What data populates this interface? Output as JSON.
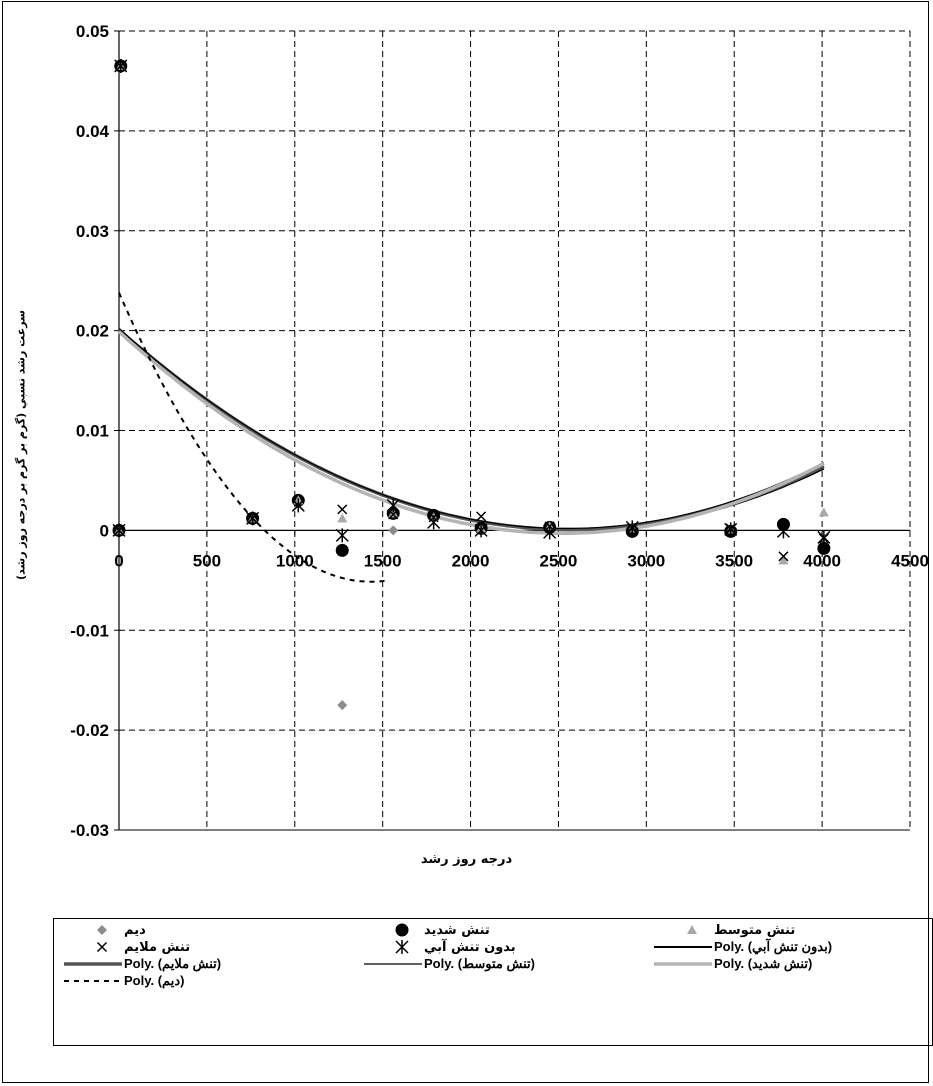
{
  "chart_data": {
    "type": "scatter",
    "title": "",
    "xlabel": "درجه روز رشد",
    "ylabel": "سرعت رشد نسبي (گرم بر گرم بر درجه روز رشد)",
    "xlim": [
      0,
      4500
    ],
    "ylim": [
      -0.03,
      0.05
    ],
    "x_ticks": [
      "0",
      "500",
      "1000",
      "1500",
      "2000",
      "2500",
      "3000",
      "3500",
      "4000",
      "4500"
    ],
    "y_ticks": [
      "0.05",
      "0.04",
      "0.03",
      "0.02",
      "0.01",
      "0",
      "-0.01",
      "-0.02",
      "-0.03"
    ],
    "grid": true,
    "legend_position": "bottom",
    "series": [
      {
        "name": "ديم",
        "marker": "diamond",
        "color": "#8c8c8c",
        "points": [
          [
            0,
            0
          ],
          [
            10,
            0.0465
          ],
          [
            760,
            0.0012
          ],
          [
            1020,
            0.003
          ],
          [
            1270,
            -0.0175
          ],
          [
            1560,
            0.0
          ],
          [
            1790,
            0.0012
          ],
          [
            2060,
            0.0
          ],
          [
            2450,
            0.0003
          ],
          [
            2920,
            0.0
          ],
          [
            3480,
            0.0
          ],
          [
            3780,
            0.0006
          ],
          [
            4010,
            -0.0015
          ]
        ]
      },
      {
        "name": "تنش شديد",
        "marker": "circle",
        "color": "#000000",
        "points": [
          [
            0,
            0
          ],
          [
            10,
            0.0465
          ],
          [
            760,
            0.0012
          ],
          [
            1020,
            0.003
          ],
          [
            1270,
            -0.002
          ],
          [
            1560,
            0.0017
          ],
          [
            1790,
            0.0015
          ],
          [
            2060,
            0.0002
          ],
          [
            2450,
            0.0003
          ],
          [
            2920,
            -0.0001
          ],
          [
            3480,
            -0.0001
          ],
          [
            3780,
            0.0006
          ],
          [
            4010,
            -0.0018
          ]
        ]
      },
      {
        "name": "تنش متوسط",
        "marker": "triangle",
        "color": "#a8a8a8",
        "points": [
          [
            0,
            0
          ],
          [
            10,
            0.0465
          ],
          [
            760,
            0.0012
          ],
          [
            1020,
            0.003
          ],
          [
            1270,
            0.0012
          ],
          [
            1560,
            0.0017
          ],
          [
            1790,
            0.0013
          ],
          [
            2060,
            0.0002
          ],
          [
            2450,
            0.0004
          ],
          [
            2920,
            0.0002
          ],
          [
            3480,
            0.0001
          ],
          [
            3780,
            -0.003
          ],
          [
            4010,
            0.0018
          ]
        ]
      },
      {
        "name": "تنش ملايم",
        "marker": "x",
        "color": "#000000",
        "points": [
          [
            0,
            0
          ],
          [
            10,
            0.0465
          ],
          [
            760,
            0.0012
          ],
          [
            1020,
            0.0025
          ],
          [
            1270,
            0.0021
          ],
          [
            1560,
            0.0016
          ],
          [
            1790,
            0.0013
          ],
          [
            2060,
            0.0014
          ],
          [
            2450,
            0.0004
          ],
          [
            2920,
            0.0002
          ],
          [
            3480,
            0.0002
          ],
          [
            3780,
            -0.0026
          ],
          [
            4010,
            -0.0008
          ]
        ]
      },
      {
        "name": "بدون تنش آبي",
        "marker": "star",
        "color": "#000000",
        "points": [
          [
            0,
            0
          ],
          [
            10,
            0.0465
          ],
          [
            760,
            0.0012
          ],
          [
            1020,
            0.0025
          ],
          [
            1270,
            -0.0005
          ],
          [
            1560,
            0.0025
          ],
          [
            1790,
            0.0008
          ],
          [
            2060,
            0.0
          ],
          [
            2450,
            -0.0002
          ],
          [
            2920,
            0.0003
          ],
          [
            3480,
            0.0001
          ],
          [
            3780,
            -0.0001
          ],
          [
            4010,
            -0.0007
          ]
        ]
      }
    ],
    "trendlines": [
      {
        "name": "Poly. (بدون تنش آبي)",
        "style": "solid",
        "color": "#000000",
        "width": 2,
        "x_range": [
          0,
          4010
        ],
        "coef": [
          0.0201,
          -1.55e-05,
          3e-09
        ]
      },
      {
        "name": "Poly. (تنش ملايم)",
        "style": "solid",
        "color": "#555555",
        "width": 3.5,
        "x_range": [
          0,
          4010
        ],
        "coef": [
          0.0201,
          -1.56e-05,
          3.04e-09
        ]
      },
      {
        "name": "Poly. (تنش متوسط)",
        "style": "solid",
        "color": "#000000",
        "width": 1.2,
        "x_range": [
          0,
          4010
        ],
        "coef": [
          0.0202,
          -1.57e-05,
          3.08e-09
        ]
      },
      {
        "name": "Poly. (تنش شديد)",
        "style": "solid",
        "color": "#b4b4b4",
        "width": 3.5,
        "x_range": [
          0,
          4010
        ],
        "coef": [
          0.0199,
          -1.6e-05,
          3.17e-09
        ]
      },
      {
        "name": "Poly. (ديم)",
        "style": "dashed",
        "color": "#000000",
        "width": 2,
        "x_range": [
          0,
          1530
        ],
        "coef": [
          0.0238,
          -4.04e-05,
          1.41e-08
        ]
      }
    ]
  },
  "legend": {
    "items": [
      {
        "label": "ديم",
        "symbol": "diamond",
        "poly": false
      },
      {
        "label": "تنش شديد",
        "symbol": "circle",
        "poly": false
      },
      {
        "label": "تنش متوسط",
        "symbol": "triangle",
        "poly": false
      },
      {
        "label": "تنش ملايم",
        "symbol": "x",
        "poly": false
      },
      {
        "label": "بدون تنش آبي",
        "symbol": "star",
        "poly": false
      },
      {
        "label": "Poly. (بدون تنش آبي)",
        "symbol": "line-black",
        "poly": true
      },
      {
        "label": "Poly. (تنش ملايم)",
        "symbol": "line-darkgray",
        "poly": true
      },
      {
        "label": "Poly. (تنش متوسط)",
        "symbol": "line-thin",
        "poly": true
      },
      {
        "label": "Poly. (تنش شديد)",
        "symbol": "line-lightgray",
        "poly": true
      },
      {
        "label": "Poly. (ديم)",
        "symbol": "line-dashed",
        "poly": true
      }
    ]
  }
}
